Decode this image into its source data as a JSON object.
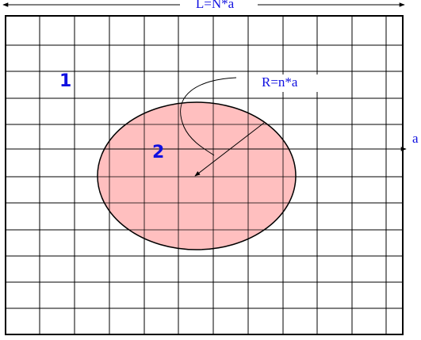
{
  "labels": {
    "length": "L=N*a",
    "region_1": "1",
    "region_2": "2",
    "radius": "R=n*a",
    "spacing": "a"
  }
}
